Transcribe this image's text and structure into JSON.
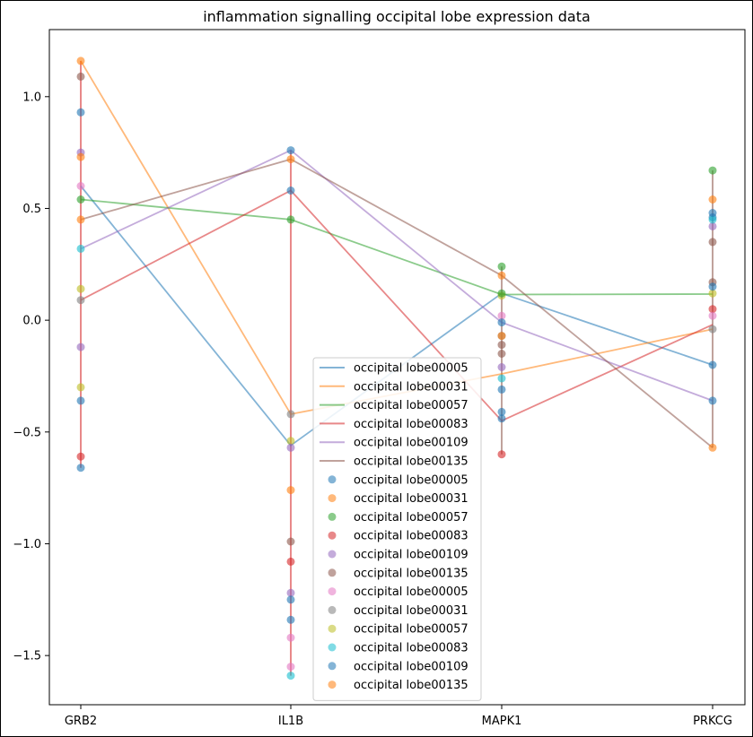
{
  "chart_data": {
    "type": "line",
    "title": "inflammation signalling occipital lobe expression data",
    "categories": [
      "GRB2",
      "IL1B",
      "MAPK1",
      "PRKCG"
    ],
    "ylim": [
      -1.72,
      1.3
    ],
    "yticks": [
      -1.5,
      -1.0,
      -0.5,
      0.0,
      0.5,
      1.0
    ],
    "ytick_labels": [
      "−1.5",
      "−1.0",
      "−0.5",
      "0.0",
      "0.5",
      "1.0"
    ],
    "grid": false,
    "legend_position": "lower-center",
    "line_series": [
      {
        "name": "occipital lobe00005",
        "color": "#1f77b4",
        "values": [
          0.6,
          -0.56,
          0.12,
          -0.2
        ]
      },
      {
        "name": "occipital lobe00031",
        "color": "#ff7f0e",
        "values": [
          1.16,
          -0.42,
          -0.24,
          -0.04
        ]
      },
      {
        "name": "occipital lobe00057",
        "color": "#2ca02c",
        "values": [
          0.54,
          0.45,
          0.115,
          0.117
        ]
      },
      {
        "name": "occipital lobe00083",
        "color": "#d62728",
        "values": [
          0.09,
          0.58,
          -0.45,
          -0.02
        ]
      },
      {
        "name": "occipital lobe00109",
        "color": "#9467bd",
        "values": [
          0.32,
          0.76,
          -0.01,
          -0.36
        ]
      },
      {
        "name": "occipital lobe00135",
        "color": "#8c564b",
        "values": [
          0.45,
          0.72,
          0.2,
          -0.57
        ]
      }
    ],
    "scatter_series": [
      {
        "name": "occipital lobe00005",
        "color": "#1f77b4",
        "values": [
          0.93,
          0.76,
          -0.44,
          0.46
        ]
      },
      {
        "name": "occipital lobe00031",
        "color": "#ff7f0e",
        "values": [
          1.16,
          0.72,
          0.2,
          0.54
        ]
      },
      {
        "name": "occipital lobe00057",
        "color": "#2ca02c",
        "values": [
          0.54,
          0.45,
          0.24,
          0.67
        ]
      },
      {
        "name": "occipital lobe00083",
        "color": "#d62728",
        "values": [
          -0.61,
          -1.08,
          -0.6,
          0.05
        ]
      },
      {
        "name": "occipital lobe00109",
        "color": "#9467bd",
        "values": [
          0.75,
          -1.22,
          -0.21,
          0.42
        ]
      },
      {
        "name": "occipital lobe00135",
        "color": "#8c564b",
        "values": [
          1.09,
          -0.99,
          -0.11,
          0.35
        ]
      },
      {
        "name": "occipital lobe00005",
        "color": "#e377c2",
        "values": [
          0.6,
          -1.42,
          0.02,
          0.02
        ]
      },
      {
        "name": "occipital lobe00031",
        "color": "#7f7f7f",
        "values": [
          0.09,
          -0.42,
          -0.07,
          -0.04
        ]
      },
      {
        "name": "occipital lobe00057",
        "color": "#bcbd22",
        "values": [
          0.14,
          -0.54,
          0.11,
          0.12
        ]
      },
      {
        "name": "occipital lobe00083",
        "color": "#17becf",
        "values": [
          0.32,
          -1.59,
          -0.26,
          0.45
        ]
      },
      {
        "name": "occipital lobe00109",
        "color": "#1f77b4",
        "values": [
          -0.36,
          -1.25,
          -0.41,
          -0.36
        ]
      },
      {
        "name": "occipital lobe00135",
        "color": "#ff7f0e",
        "values": [
          0.45,
          -0.76,
          -0.07,
          -0.57
        ]
      }
    ],
    "extra_points": [
      {
        "cat": 0,
        "y": -0.66,
        "color": "#1f77b4"
      },
      {
        "cat": 0,
        "y": -0.3,
        "color": "#bcbd22"
      },
      {
        "cat": 0,
        "y": -0.12,
        "color": "#9467bd"
      },
      {
        "cat": 0,
        "y": 0.73,
        "color": "#ff7f0e"
      },
      {
        "cat": 1,
        "y": 0.58,
        "color": "#1f77b4"
      },
      {
        "cat": 1,
        "y": -1.34,
        "color": "#1f77b4"
      },
      {
        "cat": 1,
        "y": -1.55,
        "color": "#e377c2"
      },
      {
        "cat": 1,
        "y": -0.57,
        "color": "#9467bd"
      },
      {
        "cat": 2,
        "y": -0.31,
        "color": "#1f77b4"
      },
      {
        "cat": 2,
        "y": -0.15,
        "color": "#8c564b"
      },
      {
        "cat": 2,
        "y": 0.12,
        "color": "#2ca02c"
      },
      {
        "cat": 2,
        "y": -0.01,
        "color": "#1f77b4"
      },
      {
        "cat": 3,
        "y": 0.48,
        "color": "#1f77b4"
      },
      {
        "cat": 3,
        "y": 0.17,
        "color": "#8c564b"
      },
      {
        "cat": 3,
        "y": 0.15,
        "color": "#1f77b4"
      },
      {
        "cat": 3,
        "y": -0.2,
        "color": "#1f77b4"
      }
    ]
  }
}
